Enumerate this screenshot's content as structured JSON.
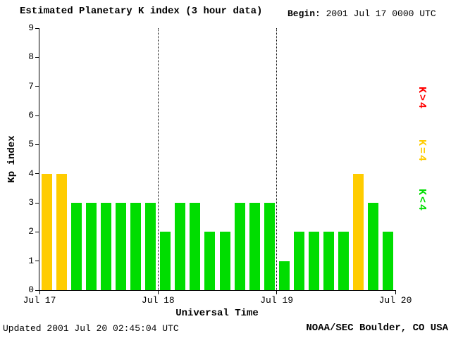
{
  "header": {
    "title": "Estimated Planetary K index (3 hour data)",
    "begin_label": "Begin:",
    "begin_value": "2001 Jul 17 0000 UTC"
  },
  "footer": {
    "updated": "Updated 2001 Jul 20 02:45:04 UTC",
    "source": "NOAA/SEC Boulder, CO USA"
  },
  "legend": [
    {
      "label": "K>4",
      "color": "#ff0000"
    },
    {
      "label": "K=4",
      "color": "#ffcc00"
    },
    {
      "label": "K<4",
      "color": "#00dd00"
    }
  ],
  "chart_data": {
    "type": "bar",
    "title": "Estimated Planetary K index (3 hour data)",
    "xlabel": "Universal Time",
    "ylabel": "Kp index",
    "ylim": [
      0,
      9
    ],
    "yticks": [
      0,
      1,
      2,
      3,
      4,
      5,
      6,
      7,
      8,
      9
    ],
    "xtick_labels": [
      "Jul 17",
      "Jul 18",
      "Jul 19",
      "Jul 20"
    ],
    "bars_per_day": 8,
    "values": [
      4,
      4,
      3,
      3,
      3,
      3,
      3,
      3,
      2,
      3,
      3,
      2,
      2,
      3,
      3,
      3,
      1,
      2,
      2,
      2,
      2,
      4,
      3,
      2
    ],
    "bar_colors": {
      "below4": "#00dd00",
      "equal4": "#ffcc00",
      "above4": "#ff0000"
    },
    "grid": "dotted vertical lines at day boundaries",
    "legend_position": "right"
  }
}
